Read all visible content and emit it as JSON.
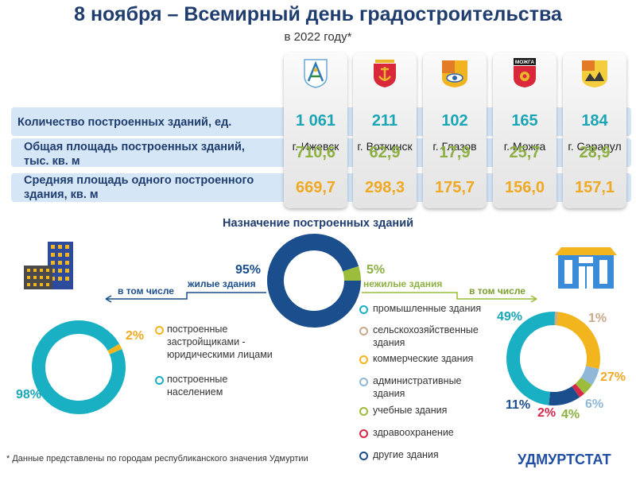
{
  "header": {
    "title": "8 ноября – Всемирный день градостроительства",
    "subtitle": "в 2022 году*"
  },
  "cities": [
    {
      "name": "г. Ижевск",
      "crest": "izhevsk-crest-icon"
    },
    {
      "name": "г. Воткинск",
      "crest": "votkinsk-crest-icon"
    },
    {
      "name": "г. Глазов",
      "crest": "glazov-crest-icon"
    },
    {
      "name": "г. Можга",
      "crest": "mozhga-crest-icon"
    },
    {
      "name": "г. Сарапул",
      "crest": "sarapul-crest-icon"
    }
  ],
  "crest_texts": {
    "mozhga": "МОЖГА"
  },
  "table": {
    "rows": [
      {
        "label_1": "Количество построенных зданий, ед.",
        "label_2": "",
        "values": [
          "1 061",
          "211",
          "102",
          "165",
          "184"
        ]
      },
      {
        "label_1": "Общая площадь построенных зданий,",
        "label_2": "тыс. кв. м",
        "values": [
          "710,6",
          "62,9",
          "17,9",
          "25,7",
          "28,9"
        ]
      },
      {
        "label_1": "Средняя площадь одного построенного",
        "label_2": "здания, кв. м",
        "values": [
          "669,7",
          "298,3",
          "175,7",
          "156,0",
          "157,1"
        ]
      }
    ]
  },
  "purpose": {
    "title": "Назначение построенных зданий",
    "residential_pct": "95%",
    "residential_label": "жилые здания",
    "nonresidential_pct": "5%",
    "nonresidential_label": "нежилые здания",
    "including_left": "в том числе",
    "including_right": "в том числе"
  },
  "residential_legend": [
    {
      "text_1": "построенные",
      "text_2": "застройщиками -",
      "text_3": "юридическими лицами",
      "color": "#f3b51e"
    },
    {
      "text_1": "построенные",
      "text_2": "населением",
      "text_3": "",
      "color": "#1ab0c4"
    }
  ],
  "residential_pcts": {
    "legal": "2%",
    "population": "98%"
  },
  "nonresidential_legend": [
    {
      "text_1": "промышленные здания",
      "text_2": "",
      "color": "#1ab0c4"
    },
    {
      "text_1": "сельскохозяйственные",
      "text_2": "здания",
      "color": "#c9a98a"
    },
    {
      "text_1": "коммерческие здания",
      "text_2": "",
      "color": "#f3b51e"
    },
    {
      "text_1": "административные",
      "text_2": "здания",
      "color": "#8fb8d8"
    },
    {
      "text_1": "учебные здания",
      "text_2": "",
      "color": "#9cbc3c"
    },
    {
      "text_1": "здравоохранение",
      "text_2": "",
      "color": "#d8284a"
    },
    {
      "text_1": "другие здания",
      "text_2": "",
      "color": "#1b4e8c"
    }
  ],
  "nonresidential_pcts": {
    "industrial": "49%",
    "agricultural": "1%",
    "commercial": "27%",
    "administrative": "6%",
    "educational": "4%",
    "health": "2%",
    "other": "11%"
  },
  "chart_data": [
    {
      "type": "pie",
      "title": "Назначение построенных зданий",
      "labels": [
        "жилые здания",
        "нежилые здания"
      ],
      "values": [
        95,
        5
      ],
      "colors": [
        "#1b4e8c",
        "#9cbc3c"
      ]
    },
    {
      "type": "pie",
      "labels": [
        "построенные застройщиками - юридическими лицами",
        "построенные населением"
      ],
      "values": [
        2,
        98
      ],
      "colors": [
        "#f3b51e",
        "#1ab0c4"
      ]
    },
    {
      "type": "pie",
      "labels": [
        "промышленные здания",
        "сельскохозяйственные здания",
        "коммерческие здания",
        "административные здания",
        "учебные здания",
        "здравоохранение",
        "другие здания"
      ],
      "values": [
        49,
        1,
        27,
        6,
        4,
        2,
        11
      ],
      "colors": [
        "#1ab0c4",
        "#c9a98a",
        "#f3b51e",
        "#8fb8d8",
        "#9cbc3c",
        "#d8284a",
        "#1b4e8c"
      ]
    }
  ],
  "footer": {
    "note": "* Данные представлены по городам республиканского значения Удмуртии",
    "brand": "УДМУРТСТАТ"
  }
}
